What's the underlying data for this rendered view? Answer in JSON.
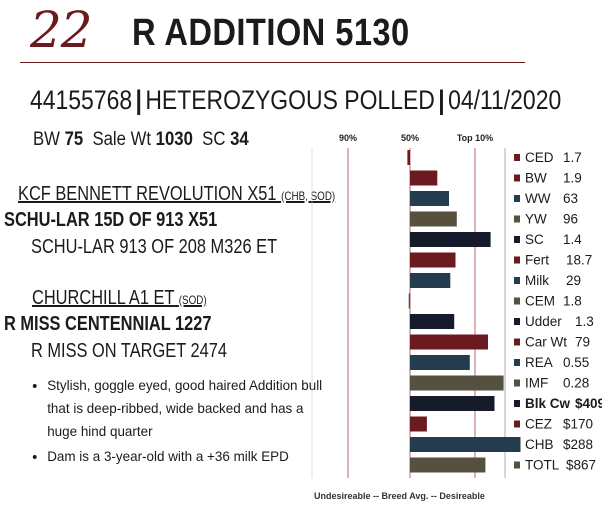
{
  "lot_number": "22",
  "title": "R ADDITION 5130",
  "registration": "44155768",
  "status": "HETEROZYGOUS POLLED",
  "birth_date": "04/11/2020",
  "stats": {
    "bw_label": "BW",
    "bw_value": "75",
    "sale_wt_label": "Sale Wt",
    "sale_wt_value": "1030",
    "sc_label": "SC",
    "sc_value": "34"
  },
  "pedigree": {
    "sire_sire": "KCF BENNETT REVOLUTION X51",
    "sire_sire_note": "(CHB, SOD)",
    "sire": "SCHU-LAR 15D OF 913 X51",
    "sire_dam": "SCHU-LAR 913 OF 208 M326 ET",
    "dam_sire": "CHURCHILL A1 ET",
    "dam_sire_note": "(SOD)",
    "dam": "R MISS CENTENNIAL 1227",
    "dam_dam": "R MISS ON TARGET 2474"
  },
  "comments": [
    "Stylish, goggle eyed, good haired Addition bull that is deep-ribbed, wide backed and has a huge hind quarter",
    "Dam is a 3-year-old with a +36 milk EPD"
  ],
  "chart_data": {
    "type": "bar",
    "header_labels": [
      "90%",
      "50%",
      "Top 10%"
    ],
    "footer": "Undesireable -- Breed Avg. -- Desireable",
    "categories": [
      "CED",
      "BW",
      "WW",
      "YW",
      "SC",
      "Fert",
      "Milk",
      "CEM",
      "Udder",
      "Car Wt",
      "REA",
      "IMF",
      "Blk Cw",
      "CEZ",
      "CHB",
      "TOTL"
    ],
    "epd_values": [
      "1.7",
      "1.9",
      "63",
      "96",
      "1.4",
      "18.7",
      "29",
      "1.8",
      "1.3",
      "79",
      "0.55",
      "0.28",
      "$409",
      "$170",
      "$288",
      "$867"
    ],
    "bar_values": [
      -2,
      21,
      30,
      36,
      62,
      35,
      31,
      -1,
      34,
      60,
      46,
      72,
      65,
      13,
      85,
      58
    ],
    "bar_colors": [
      "#6b1a1f",
      "#6b1a1f",
      "#233c4e",
      "#56513f",
      "#161b2b",
      "#6b1a1f",
      "#233c4e",
      "#56513f",
      "#161b2b",
      "#6b1a1f",
      "#233c4e",
      "#56513f",
      "#161b2b",
      "#6b1a1f",
      "#233c4e",
      "#56513f"
    ],
    "bold_rows": [
      "Blk Cw"
    ],
    "scale_note": "bar_values are percent of the span from Breed Avg. (0) to Top 10% (50)"
  }
}
